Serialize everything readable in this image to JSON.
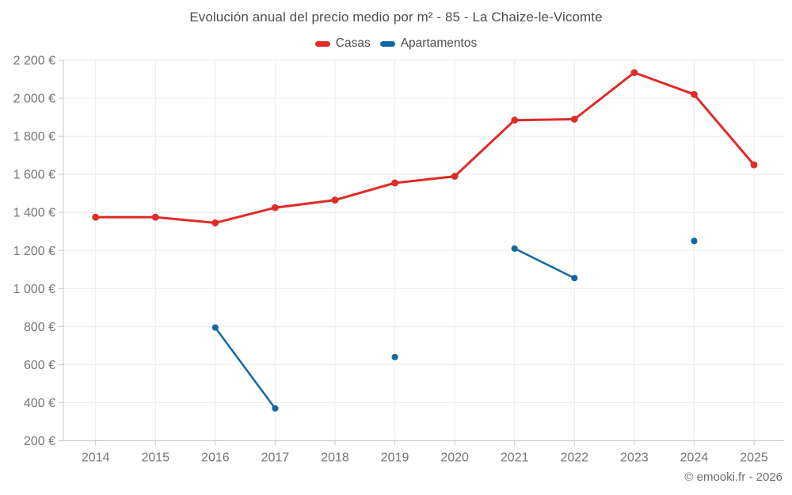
{
  "chart_data": {
    "type": "line",
    "title": "Evolución anual del precio medio por m² - 85 - La Chaize-le-Vicomte",
    "watermark": "© emooki.fr - 2026",
    "categories": [
      "2014",
      "2015",
      "2016",
      "2017",
      "2018",
      "2019",
      "2020",
      "2021",
      "2022",
      "2023",
      "2024",
      "2025"
    ],
    "series": [
      {
        "name": "Casas",
        "color": "#e02b28",
        "values": [
          1375,
          1375,
          1345,
          1425,
          1465,
          1555,
          1590,
          1885,
          1890,
          2135,
          2020,
          1650
        ]
      },
      {
        "name": "Apartamentos",
        "color": "#1269a2",
        "values": [
          null,
          null,
          795,
          370,
          null,
          640,
          null,
          1210,
          1055,
          null,
          1250,
          null
        ]
      }
    ],
    "ylim": [
      200,
      2200
    ],
    "y_ticks": [
      {
        "value": 200,
        "label": "200 €"
      },
      {
        "value": 400,
        "label": "400 €"
      },
      {
        "value": 600,
        "label": "600 €"
      },
      {
        "value": 800,
        "label": "800 €"
      },
      {
        "value": 1000,
        "label": "1 000 €"
      },
      {
        "value": 1200,
        "label": "1 200 €"
      },
      {
        "value": 1400,
        "label": "1 400 €"
      },
      {
        "value": 1600,
        "label": "1 600 €"
      },
      {
        "value": 1800,
        "label": "1 800 €"
      },
      {
        "value": 2000,
        "label": "2 000 €"
      },
      {
        "value": 2200,
        "label": "2 200 €"
      }
    ],
    "xlabel": "",
    "ylabel": "",
    "grid": true,
    "legend_position": "top"
  }
}
